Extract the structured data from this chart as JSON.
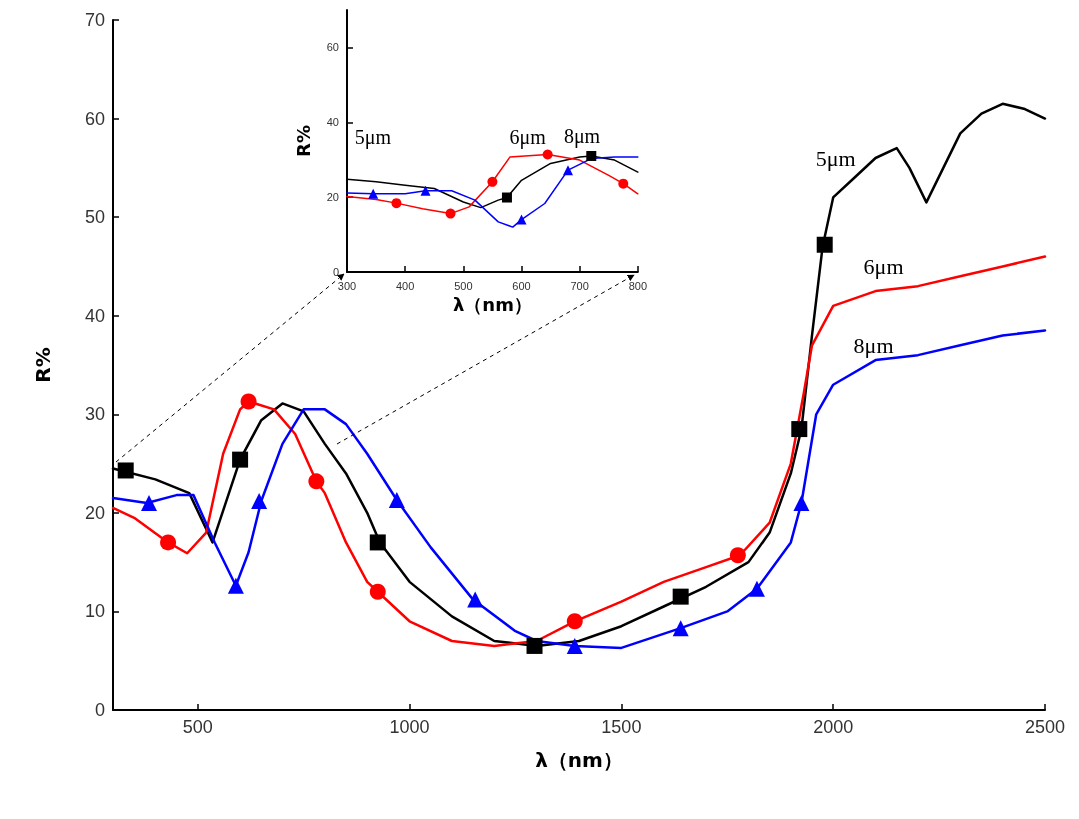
{
  "chart_data": [
    {
      "type": "line",
      "xlabel": "λ（nm）",
      "ylabel": "R%",
      "xlim": [
        300,
        2500
      ],
      "xticks": [
        500,
        1000,
        1500,
        2000,
        2500
      ],
      "ylim": [
        0,
        70
      ],
      "yticks": [
        0,
        10,
        20,
        30,
        40,
        50,
        60,
        70
      ],
      "line_style": "solid",
      "series": [
        {
          "name": "5μm",
          "color": "#000000",
          "marker": "none",
          "x": [
            300,
            400,
            480,
            535,
            600,
            650,
            700,
            750,
            800,
            850,
            900,
            930,
            1000,
            1100,
            1200,
            1300,
            1400,
            1500,
            1600,
            1700,
            1800,
            1850,
            1900,
            1925,
            1950,
            1975,
            2000,
            2050,
            2100,
            2150,
            2180,
            2220,
            2260,
            2300,
            2350,
            2400,
            2450,
            2500
          ],
          "values": [
            24.5,
            23.4,
            22,
            17,
            25.4,
            29.4,
            31.1,
            30.3,
            27,
            24,
            20,
            17,
            13,
            9.5,
            7,
            6.5,
            7,
            8.5,
            10.5,
            12.5,
            15,
            18,
            24,
            28.5,
            38,
            47,
            52,
            54,
            56,
            57,
            55,
            51.5,
            55,
            58.5,
            60.5,
            61.5,
            61,
            60
          ]
        },
        {
          "type": "scatter",
          "color": "#000000",
          "marker": "square",
          "x": [
            330,
            600,
            925,
            1295,
            1640,
            1920,
            1980
          ],
          "values": [
            24.3,
            25.4,
            17,
            6.5,
            11.5,
            28.5,
            47.2
          ]
        },
        {
          "name": "6μm",
          "color": "#ff0000",
          "marker": "none",
          "x": [
            300,
            350,
            430,
            475,
            520,
            560,
            600,
            620,
            680,
            730,
            780,
            800,
            850,
            900,
            925,
            1000,
            1100,
            1200,
            1300,
            1390,
            1500,
            1600,
            1700,
            1780,
            1850,
            1900,
            1930,
            1950,
            2000,
            2100,
            2200,
            2300,
            2400,
            2500
          ],
          "values": [
            20.5,
            19.5,
            17,
            15.9,
            18,
            26,
            30.5,
            31.3,
            30.5,
            28,
            23.2,
            22,
            17,
            13,
            12,
            9,
            7,
            6.5,
            7,
            9,
            11,
            13,
            14.5,
            15.7,
            19,
            25,
            32,
            37,
            41,
            42.5,
            43,
            44,
            45,
            46
          ]
        },
        {
          "type": "scatter",
          "color": "#ff0000",
          "marker": "circle",
          "x": [
            430,
            620,
            780,
            925,
            1390,
            1775
          ],
          "values": [
            17,
            31.3,
            23.2,
            12,
            9,
            15.7
          ]
        },
        {
          "name": "8μm",
          "color": "#0000ff",
          "marker": "none",
          "x": [
            300,
            380,
            450,
            490,
            540,
            590,
            620,
            650,
            700,
            750,
            800,
            850,
            900,
            970,
            1050,
            1150,
            1250,
            1300,
            1390,
            1500,
            1640,
            1750,
            1820,
            1900,
            1925,
            1960,
            2000,
            2100,
            2200,
            2300,
            2400,
            2500
          ],
          "values": [
            21.5,
            21,
            21.8,
            21.8,
            17,
            12.6,
            16,
            21.2,
            27,
            30.5,
            30.5,
            29,
            26,
            21.3,
            16.5,
            11.2,
            8,
            7,
            6.5,
            6.3,
            8.3,
            10,
            12.3,
            17,
            21,
            30,
            33,
            35.5,
            36,
            37,
            38,
            38.5
          ]
        },
        {
          "type": "scatter",
          "color": "#0000ff",
          "marker": "triangle",
          "x": [
            385,
            590,
            645,
            970,
            1155,
            1390,
            1640,
            1820,
            1925
          ],
          "values": [
            21,
            12.6,
            21.2,
            21.3,
            11.2,
            6.5,
            8.3,
            12.3,
            21
          ]
        }
      ]
    },
    {
      "type": "line",
      "xlabel": "λ（nm）",
      "ylabel": "R%",
      "xlim": [
        300,
        800
      ],
      "xticks": [
        300,
        400,
        500,
        600,
        700,
        800
      ],
      "ylim": [
        0,
        70
      ],
      "yticks": [
        0,
        20,
        40,
        60
      ],
      "line_style": "solid",
      "series": [
        {
          "name": "5μm",
          "color": "#000000",
          "marker": "none",
          "x": [
            300,
            350,
            400,
            450,
            500,
            530,
            560,
            575,
            600,
            650,
            700,
            720,
            760,
            800
          ],
          "values": [
            24.8,
            24.1,
            23.2,
            22.3,
            18.7,
            17.2,
            19.2,
            19.9,
            24.5,
            29,
            30.7,
            31,
            29.9,
            26.7
          ]
        },
        {
          "type": "scatter",
          "color": "#000000",
          "marker": "square",
          "x": [
            575,
            720
          ],
          "values": [
            19.9,
            31
          ]
        },
        {
          "name": "6μm",
          "color": "#ff0000",
          "marker": "none",
          "x": [
            300,
            350,
            385,
            430,
            478,
            510,
            550,
            580,
            645,
            700,
            750,
            775,
            800
          ],
          "values": [
            20.2,
            19.4,
            18.4,
            16.9,
            15.6,
            17.4,
            24.1,
            30.7,
            31.4,
            29.9,
            25.8,
            23.6,
            20.9
          ]
        },
        {
          "type": "scatter",
          "color": "#ff0000",
          "marker": "circle",
          "x": [
            385,
            478,
            550,
            645,
            775
          ],
          "values": [
            18.4,
            15.6,
            24.1,
            31.4,
            23.6
          ]
        },
        {
          "name": "8μm",
          "color": "#0000ff",
          "marker": "none",
          "x": [
            300,
            345,
            400,
            435,
            480,
            520,
            560,
            585,
            600,
            640,
            680,
            720,
            760,
            800
          ],
          "values": [
            21.1,
            20.9,
            20.9,
            21.7,
            21.7,
            19.2,
            13.4,
            12,
            14,
            18.3,
            27.2,
            30.3,
            30.7,
            30.7
          ]
        },
        {
          "type": "scatter",
          "color": "#0000ff",
          "marker": "triangle",
          "x": [
            345,
            435,
            600,
            680
          ],
          "values": [
            20.9,
            21.7,
            14,
            27.2
          ]
        }
      ]
    }
  ]
}
